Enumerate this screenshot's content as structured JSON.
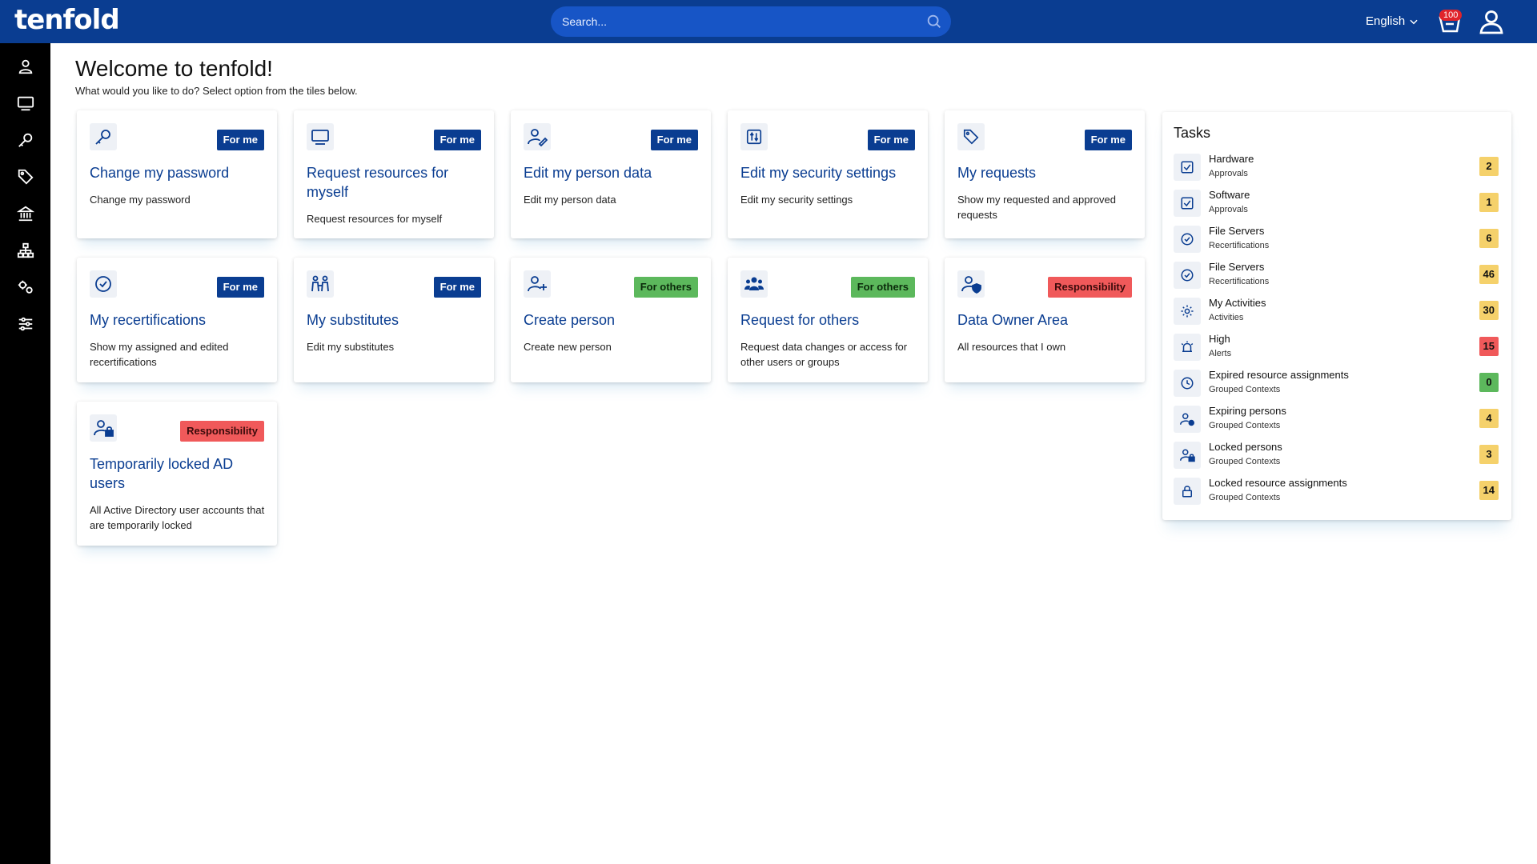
{
  "app": {
    "logo": "tenfold"
  },
  "search": {
    "placeholder": "Search..."
  },
  "header": {
    "language": "English",
    "cart_count": "100"
  },
  "sidebar": {
    "items": [
      "person-icon",
      "monitor-icon",
      "key-icon",
      "tags-icon",
      "bank-icon",
      "org-chart-icon",
      "gears-icon",
      "sliders-icon"
    ]
  },
  "main": {
    "title": "Welcome to tenfold!",
    "subtitle": "What would you like to do? Select option from the tiles below."
  },
  "tiles": [
    {
      "title": "Change my password",
      "badge": "For me",
      "badge_type": "me",
      "desc": "Change my password",
      "icon": "key-icon"
    },
    {
      "title": "Request resources for myself",
      "badge": "For me",
      "badge_type": "me",
      "desc": "Request resources for myself",
      "icon": "monitor-icon"
    },
    {
      "title": "Edit my person data",
      "badge": "For me",
      "badge_type": "me",
      "desc": "Edit my person data",
      "icon": "user-edit-icon"
    },
    {
      "title": "Edit my security settings",
      "badge": "For me",
      "badge_type": "me",
      "desc": "Edit my security settings",
      "icon": "security-settings-icon"
    },
    {
      "title": "My requests",
      "badge": "For me",
      "badge_type": "me",
      "desc": "Show my requested and approved requests",
      "icon": "tag-icon"
    },
    {
      "title": "My recertifications",
      "badge": "For me",
      "badge_type": "me",
      "desc": "Show my assigned and edited recertifications",
      "icon": "check-badge-icon"
    },
    {
      "title": "My substitutes",
      "badge": "For me",
      "badge_type": "me",
      "desc": "Edit my substitutes",
      "icon": "substitutes-icon"
    },
    {
      "title": "Create person",
      "badge": "For others",
      "badge_type": "others",
      "desc": "Create new person",
      "icon": "user-plus-icon"
    },
    {
      "title": "Request for others",
      "badge": "For others",
      "badge_type": "others",
      "desc": "Request data changes or access for other users or groups",
      "icon": "users-icon"
    },
    {
      "title": "Data Owner Area",
      "badge": "Responsibility",
      "badge_type": "resp",
      "desc": "All resources that I own",
      "icon": "user-shield-icon"
    },
    {
      "title": "Temporarily locked AD users",
      "badge": "Responsibility",
      "badge_type": "resp",
      "desc": "All Active Directory user accounts that are temporarily locked",
      "icon": "user-lock-icon"
    }
  ],
  "tasks": {
    "title": "Tasks",
    "items": [
      {
        "name": "Hardware",
        "sub": "Approvals",
        "count": "2",
        "color": "#f5d16b",
        "icon": "checkbox-icon"
      },
      {
        "name": "Software",
        "sub": "Approvals",
        "count": "1",
        "color": "#f5d16b",
        "icon": "checkbox-icon"
      },
      {
        "name": "File Servers",
        "sub": "Recertifications",
        "count": "6",
        "color": "#f5d16b",
        "icon": "check-badge-icon"
      },
      {
        "name": "File Servers",
        "sub": "Recertifications",
        "count": "46",
        "color": "#f5d16b",
        "icon": "check-badge-icon"
      },
      {
        "name": "My Activities",
        "sub": "Activities",
        "count": "30",
        "color": "#f5d16b",
        "icon": "gear-icon"
      },
      {
        "name": "High",
        "sub": "Alerts",
        "count": "15",
        "color": "#f0595a",
        "icon": "alarm-icon"
      },
      {
        "name": "Expired resource assignments",
        "sub": "Grouped Contexts",
        "count": "0",
        "color": "#5cb85c",
        "icon": "clock-icon"
      },
      {
        "name": "Expiring persons",
        "sub": "Grouped Contexts",
        "count": "4",
        "color": "#f5d16b",
        "icon": "user-clock-icon"
      },
      {
        "name": "Locked persons",
        "sub": "Grouped Contexts",
        "count": "3",
        "color": "#f5d16b",
        "icon": "user-lock-icon"
      },
      {
        "name": "Locked resource assignments",
        "sub": "Grouped Contexts",
        "count": "14",
        "color": "#f5d16b",
        "icon": "lock-icon"
      }
    ]
  }
}
